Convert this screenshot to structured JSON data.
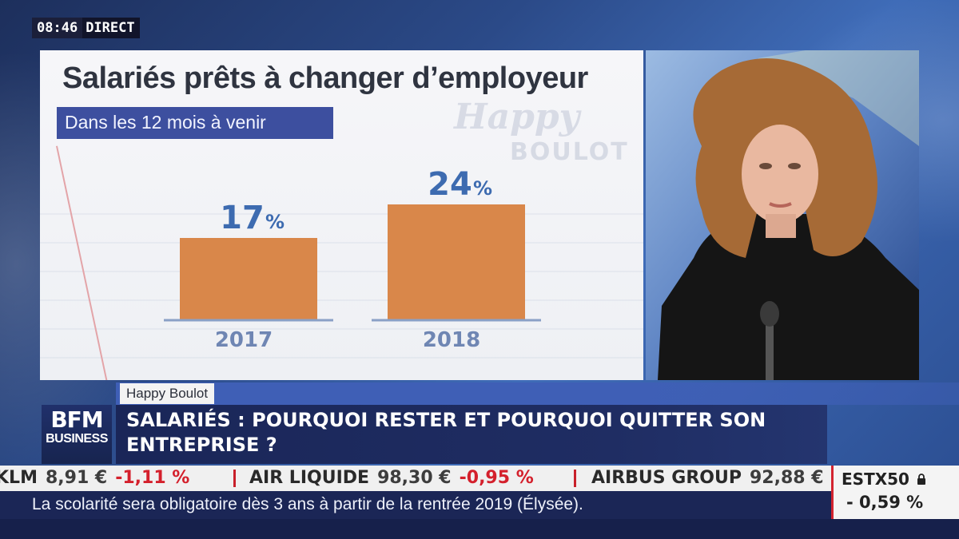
{
  "live_bug": {
    "time": "08:46",
    "status": "DIRECT"
  },
  "graphic": {
    "title": "Salariés prêts à changer d’employeur",
    "subtitle": "Dans les 12 mois à venir",
    "watermark_line1": "Happy",
    "watermark_line2": "BOULOT"
  },
  "chart_data": {
    "type": "bar",
    "title": "Salariés prêts à changer d’employeur",
    "subtitle": "Dans les 12 mois à venir",
    "categories": [
      "2017",
      "2018"
    ],
    "values": [
      17,
      24
    ],
    "value_labels": [
      "17",
      "24"
    ],
    "unit": "%",
    "bar_color": "#d9874a",
    "label_color": "#3d6bb0",
    "category_color": "#6f86b3",
    "grid": false,
    "legend": "none"
  },
  "lower_third": {
    "program": "Happy Boulot",
    "headline": "SALARIÉS : POURQUOI RESTER ET POURQUOI QUITTER SON ENTREPRISE ?",
    "logo_line1": "BFM",
    "logo_line2": "BUSINESS"
  },
  "stock_ticker": [
    {
      "name": "KLM",
      "price": "8,91 €",
      "change": "-1,11 %"
    },
    {
      "name": "AIR LIQUIDE",
      "price": "98,30 €",
      "change": "-0,95 %"
    },
    {
      "name": "AIRBUS GROUP",
      "price": "92,88 €",
      "change": ""
    }
  ],
  "index": {
    "name": "ESTX50",
    "icon": "lock-icon",
    "change": "- 0,59 %"
  },
  "news_ticker": "La scolarité sera obligatoire dès 3 ans à partir de la rentrée 2019 (Élysée).",
  "colors": {
    "accent": "#3d4f9f",
    "brand_navy": "#1a2658",
    "negative": "#d4202c"
  }
}
